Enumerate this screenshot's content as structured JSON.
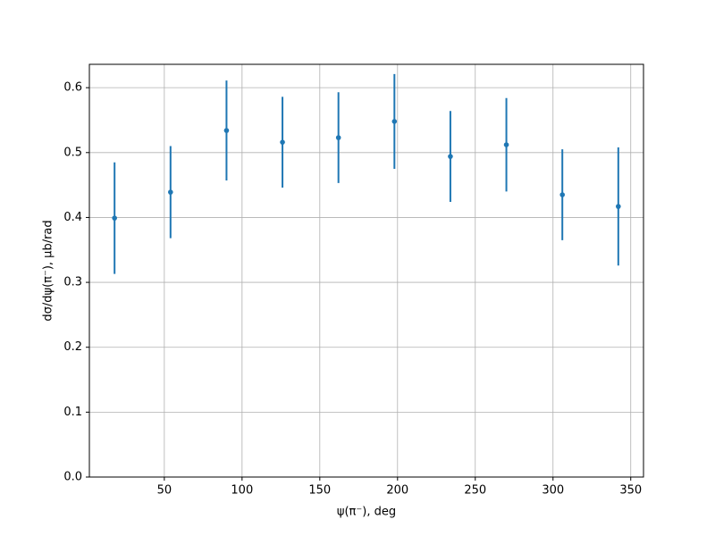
{
  "chart_data": {
    "type": "errorbar",
    "xlabel": "ψ(π⁻), deg",
    "ylabel": "dσ/dψ(π⁻), μb/rad",
    "color": "#1f77b4",
    "grid": true,
    "x": [
      18,
      54,
      90,
      126,
      162,
      198,
      234,
      270,
      306,
      342
    ],
    "values": [
      0.399,
      0.439,
      0.534,
      0.516,
      0.523,
      0.548,
      0.494,
      0.512,
      0.435,
      0.417
    ],
    "errors": [
      0.086,
      0.071,
      0.077,
      0.07,
      0.07,
      0.073,
      0.07,
      0.072,
      0.07,
      0.091
    ],
    "xlim": [
      1.8,
      358.2
    ],
    "ylim": [
      0,
      0.636
    ],
    "xticks": [
      50,
      100,
      150,
      200,
      250,
      300,
      350
    ],
    "yticks": [
      {
        "value": 0,
        "label": "0.0"
      },
      0.1,
      0.2,
      0.3,
      0.4,
      0.5,
      0.6
    ]
  }
}
